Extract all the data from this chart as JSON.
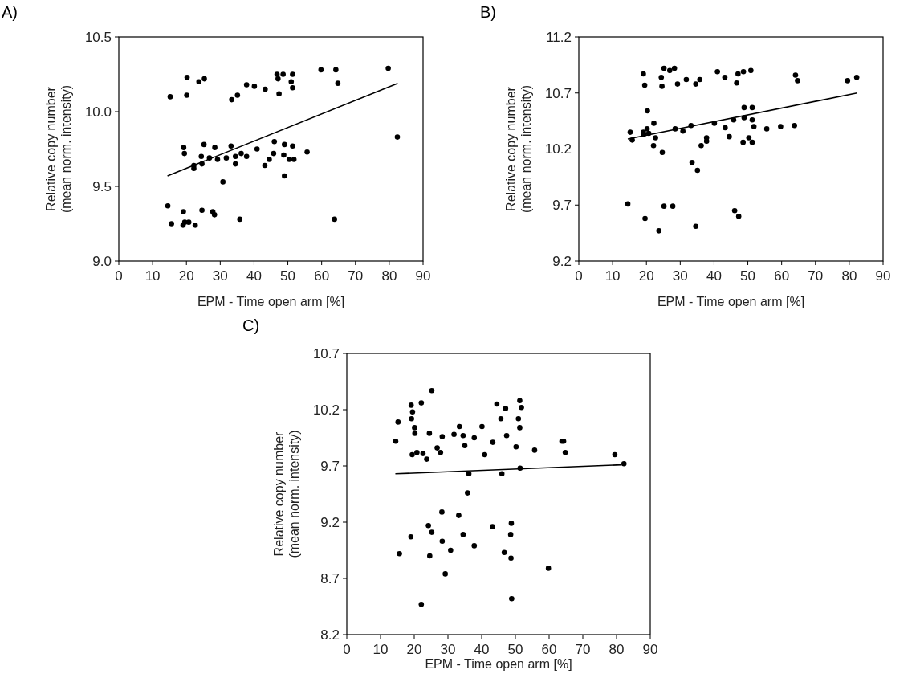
{
  "chart_data": [
    {
      "type": "scatter",
      "title": "A)",
      "xlabel": "EPM - Time open arm [%]",
      "ylabel": "Relative copy number\n(mean norm. intensity)",
      "xlim": [
        0,
        90
      ],
      "xticks": [
        0,
        10,
        20,
        30,
        40,
        50,
        60,
        70,
        80,
        90
      ],
      "ylim": [
        9.0,
        10.5
      ],
      "yticks": [
        {
          "value": 9.0,
          "label": "9.0"
        },
        9.5,
        {
          "value": 10.0,
          "label": "10.0"
        },
        10.5
      ],
      "grid": false,
      "series": [
        {
          "marker": "circle",
          "color": "#000000",
          "x": [
            15.2,
            20.2,
            20.1,
            23.7,
            25.3,
            33.4,
            35.1,
            37.8,
            40.1,
            43.3,
            46.8,
            47.1,
            48.6,
            51.4,
            51.0,
            51.4,
            47.4,
            59.8,
            64.2,
            64.8,
            79.7,
            82.4,
            19.2,
            19.4,
            25.2,
            28.4,
            33.2,
            24.4,
            26.8,
            22.2,
            22.2,
            24.6,
            29.2,
            31.8,
            34.5,
            34.5,
            36.2,
            37.8,
            40.9,
            30.8,
            46.0,
            49.0,
            51.4,
            45.8,
            48.8,
            50.4,
            51.8,
            44.5,
            43.2,
            55.7,
            49.0,
            14.5,
            15.6,
            19.1,
            19.0,
            19.5,
            20.7,
            22.6,
            24.6,
            27.8,
            28.3,
            35.8,
            63.8
          ],
          "values": [
            10.1,
            10.23,
            10.11,
            10.2,
            10.22,
            10.08,
            10.11,
            10.18,
            10.17,
            10.15,
            10.25,
            10.22,
            10.25,
            10.25,
            10.2,
            10.16,
            10.12,
            10.28,
            10.28,
            10.19,
            10.29,
            9.83,
            9.76,
            9.72,
            9.78,
            9.76,
            9.77,
            9.7,
            9.69,
            9.64,
            9.62,
            9.65,
            9.68,
            9.69,
            9.7,
            9.65,
            9.72,
            9.7,
            9.75,
            9.53,
            9.8,
            9.78,
            9.77,
            9.72,
            9.71,
            9.68,
            9.68,
            9.68,
            9.64,
            9.73,
            9.57,
            9.37,
            9.25,
            9.33,
            9.24,
            9.26,
            9.26,
            9.24,
            9.34,
            9.33,
            9.31,
            9.28,
            9.28
          ]
        },
        {
          "type": "line",
          "color": "#000000",
          "x": [
            14.4,
            82.5
          ],
          "values": [
            9.57,
            10.19
          ]
        }
      ]
    },
    {
      "type": "scatter",
      "title": "B)",
      "xlabel": "EPM - Time open arm [%]",
      "ylabel": "Relative copy number\n(mean norm. intensity)",
      "xlim": [
        0,
        90
      ],
      "xticks": [
        0,
        10,
        20,
        30,
        40,
        50,
        60,
        70,
        80,
        90
      ],
      "ylim": [
        9.2,
        11.2
      ],
      "yticks": [
        9.2,
        9.7,
        10.2,
        10.7,
        11.2
      ],
      "grid": false,
      "series": [
        {
          "marker": "circle",
          "color": "#000000",
          "x": [
            19.1,
            19.5,
            24.4,
            24.6,
            25.2,
            26.9,
            28.3,
            29.2,
            31.8,
            34.6,
            35.8,
            41.0,
            43.2,
            46.7,
            47.1,
            48.7,
            50.9,
            64.1,
            64.7,
            79.5,
            82.2,
            15.2,
            15.8,
            20.3,
            19.1,
            19.2,
            20.2,
            20.7,
            22.2,
            22.7,
            22.1,
            24.7,
            28.5,
            30.8,
            33.2,
            33.5,
            35.1,
            36.2,
            37.8,
            37.8,
            40.1,
            43.3,
            44.5,
            45.8,
            48.9,
            48.9,
            48.6,
            50.3,
            51.3,
            51.3,
            51.8,
            51.3,
            55.6,
            59.7,
            63.8,
            14.5,
            19.6,
            23.7,
            25.2,
            27.8,
            34.6,
            46.1,
            47.3
          ],
          "values": [
            10.87,
            10.77,
            10.84,
            10.76,
            10.92,
            10.9,
            10.92,
            10.78,
            10.82,
            10.78,
            10.82,
            10.89,
            10.84,
            10.79,
            10.87,
            10.89,
            10.9,
            10.86,
            10.81,
            10.81,
            10.84,
            10.35,
            10.28,
            10.54,
            10.35,
            10.33,
            10.38,
            10.34,
            10.43,
            10.3,
            10.23,
            10.17,
            10.38,
            10.36,
            10.41,
            10.08,
            10.01,
            10.23,
            10.27,
            10.3,
            10.43,
            10.39,
            10.31,
            10.46,
            10.57,
            10.48,
            10.26,
            10.3,
            10.57,
            10.46,
            10.4,
            10.26,
            10.38,
            10.4,
            10.41,
            9.71,
            9.58,
            9.47,
            9.69,
            9.69,
            9.51,
            9.65,
            9.6
          ]
        },
        {
          "type": "line",
          "color": "#000000",
          "x": [
            14.5,
            82.3
          ],
          "values": [
            10.29,
            10.7
          ]
        }
      ]
    },
    {
      "type": "scatter",
      "title": "C)",
      "xlabel": "EPM - Time open arm [%]",
      "ylabel": "Relative copy number\n(mean norm. intensity)",
      "xlim": [
        0,
        90
      ],
      "xticks": [
        0,
        10,
        20,
        30,
        40,
        50,
        60,
        70,
        80,
        90
      ],
      "ylim": [
        8.2,
        10.7
      ],
      "yticks": [
        8.2,
        8.7,
        9.2,
        9.7,
        10.2,
        10.7
      ],
      "grid": false,
      "series": [
        {
          "marker": "circle",
          "color": "#000000",
          "x": [
            14.5,
            15.2,
            19.1,
            19.5,
            19.2,
            20.1,
            20.2,
            19.4,
            20.8,
            22.1,
            22.6,
            23.7,
            24.5,
            25.2,
            26.8,
            27.8,
            28.3,
            31.8,
            33.4,
            34.5,
            35.0,
            37.8,
            36.2,
            35.8,
            40.1,
            40.9,
            43.3,
            44.5,
            45.7,
            47.1,
            47.4,
            46.0,
            50.2,
            50.9,
            51.3,
            51.8,
            51.3,
            51.4,
            55.7,
            63.8,
            64.3,
            64.8,
            79.5,
            82.2,
            28.2,
            33.2,
            24.2,
            25.2,
            19.0,
            28.3,
            30.8,
            34.5,
            37.8,
            43.2,
            48.8,
            48.6,
            15.6,
            24.6,
            46.7,
            48.7,
            29.2,
            59.8,
            22.1,
            48.9
          ],
          "values": [
            9.92,
            10.09,
            10.24,
            10.18,
            10.12,
            10.04,
            9.99,
            9.8,
            9.82,
            10.26,
            9.81,
            9.76,
            9.99,
            10.37,
            9.86,
            9.82,
            9.96,
            9.98,
            10.05,
            9.97,
            9.88,
            9.95,
            9.63,
            9.46,
            10.05,
            9.8,
            9.91,
            10.25,
            10.12,
            10.21,
            9.97,
            9.63,
            9.87,
            10.12,
            10.28,
            10.22,
            10.04,
            9.68,
            9.84,
            9.92,
            9.92,
            9.82,
            9.8,
            9.72,
            9.29,
            9.26,
            9.17,
            9.11,
            9.07,
            9.03,
            8.95,
            9.09,
            8.99,
            9.16,
            9.19,
            9.09,
            8.92,
            8.9,
            8.93,
            8.88,
            8.74,
            8.79,
            8.47,
            8.52
          ]
        },
        {
          "type": "line",
          "color": "#000000",
          "x": [
            14.4,
            81.5
          ],
          "values": [
            9.63,
            9.71
          ]
        }
      ]
    }
  ]
}
